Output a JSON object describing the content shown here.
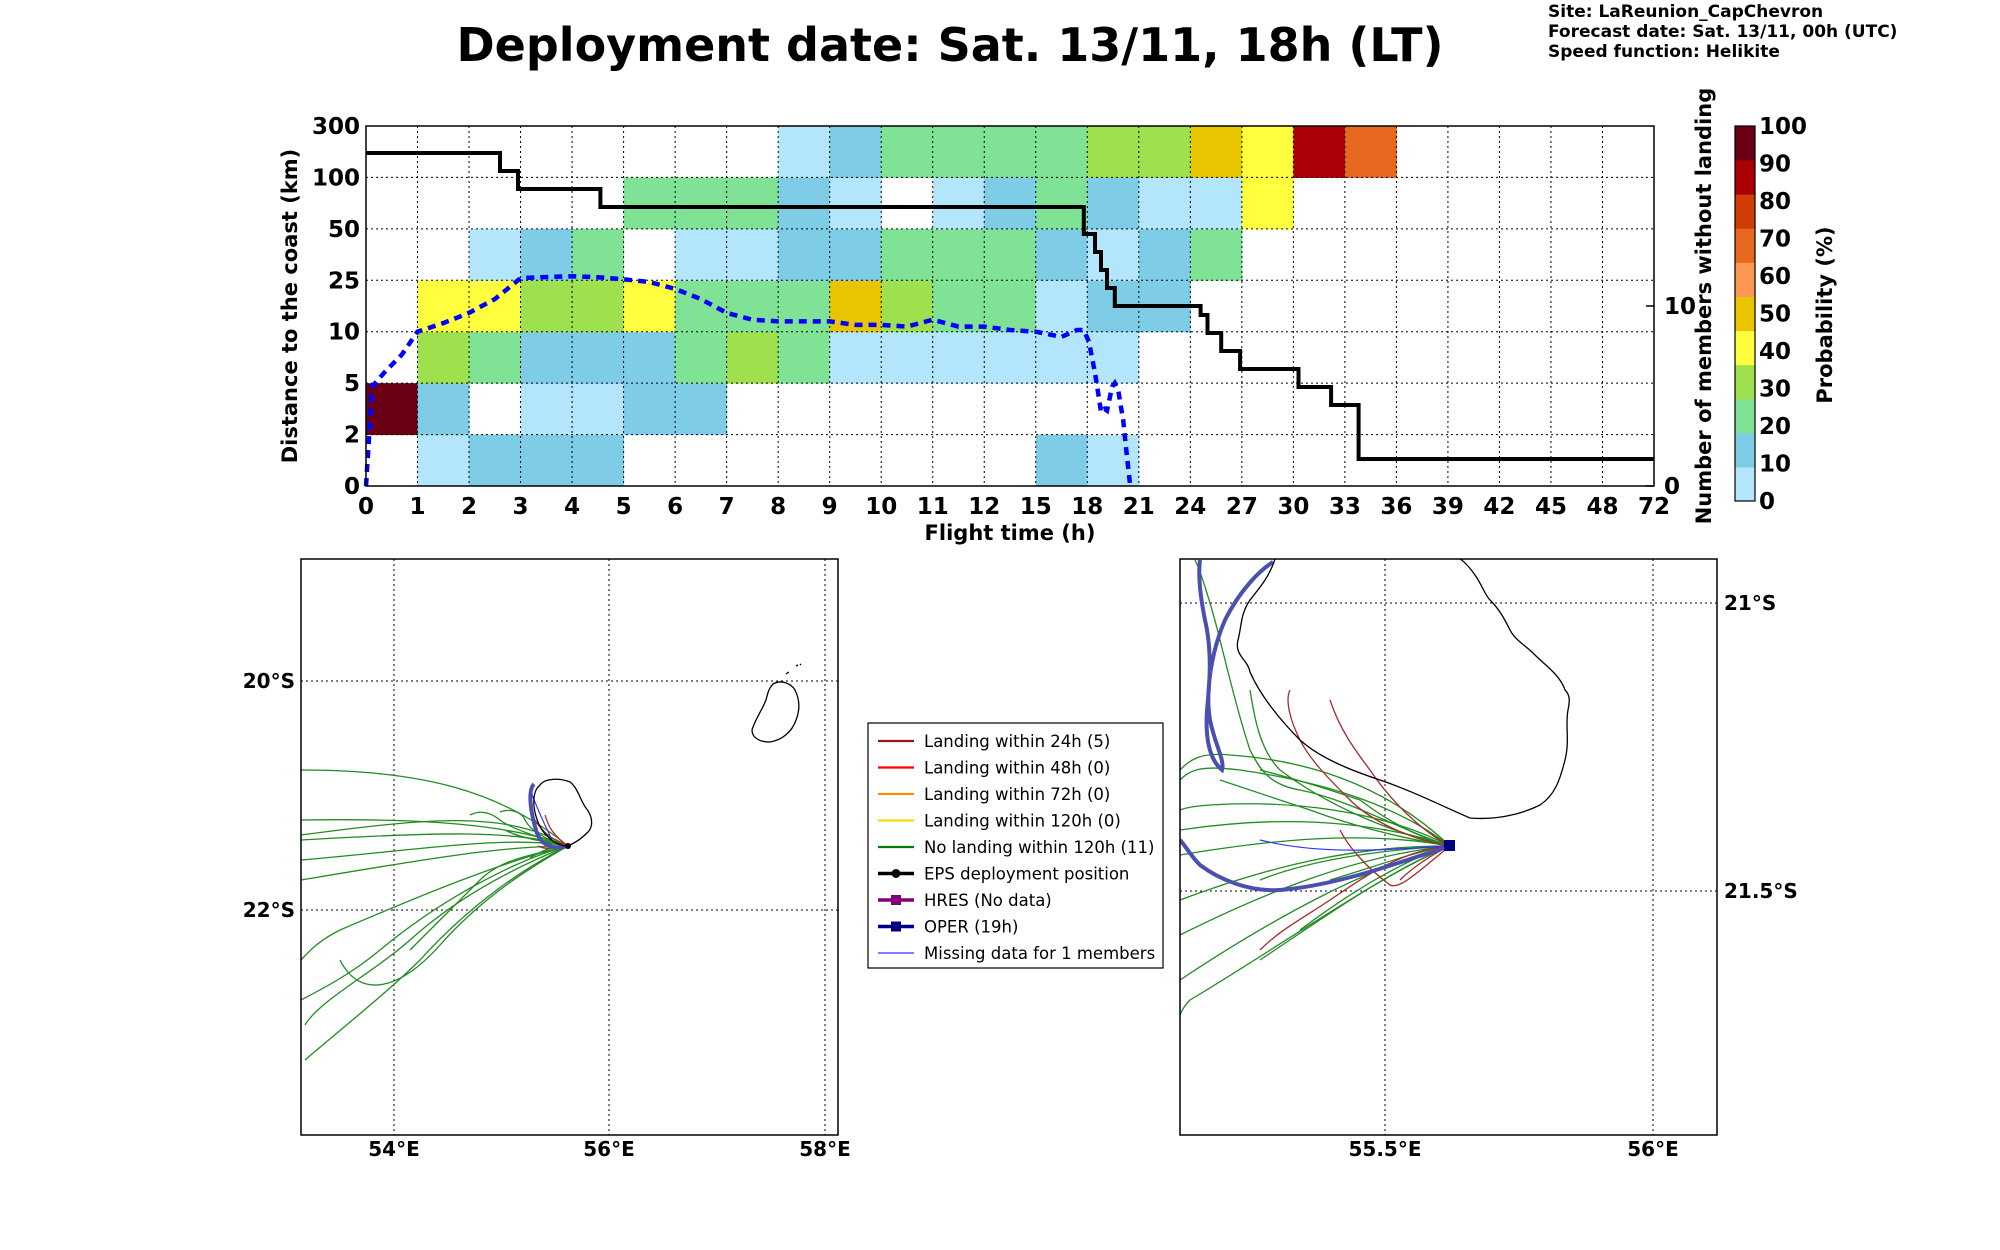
{
  "title": "Deployment date: Sat. 13/11, 18h (LT)",
  "info": {
    "site": "Site: LaReunion_CapChevron",
    "forecast": "Forecast date: Sat. 13/11, 00h (UTC)",
    "speed": "Speed function: Helikite"
  },
  "chart_data": [
    {
      "type": "heatmap",
      "xlabel": "Flight time (h)",
      "ylabel": "Distance to the coast (km)",
      "y2label": "Number of members without landing",
      "x_ticks": [
        "0",
        "1",
        "2",
        "3",
        "4",
        "5",
        "6",
        "7",
        "8",
        "9",
        "10",
        "11",
        "12",
        "15",
        "18",
        "21",
        "24",
        "27",
        "30",
        "33",
        "36",
        "39",
        "42",
        "45",
        "48",
        "72"
      ],
      "y_ticks": [
        "0",
        "2",
        "5",
        "10",
        "25",
        "50",
        "100",
        "300"
      ],
      "y2_ticks": [
        "0",
        "10"
      ],
      "y2lim": [
        0,
        20
      ],
      "grid": true,
      "colorbar": {
        "label": "Probability (%)",
        "ticks": [
          "0",
          "10",
          "20",
          "30",
          "40",
          "50",
          "60",
          "70",
          "80",
          "90",
          "100"
        ],
        "colors": [
          "#b3e5fb",
          "#7fcce7",
          "#80e294",
          "#9ee04d",
          "#ffff40",
          "#e8c500",
          "#ff9651",
          "#e86820",
          "#d03d06",
          "#ab0005",
          "#6b0015"
        ]
      },
      "cells": [
        {
          "x": 0,
          "y": 1,
          "c": 10
        },
        {
          "x": 1,
          "y": 0,
          "c": 0
        },
        {
          "x": 1,
          "y": 1,
          "c": 1
        },
        {
          "x": 1,
          "y": 2,
          "c": 3
        },
        {
          "x": 1,
          "y": 3,
          "c": 4
        },
        {
          "x": 2,
          "y": 0,
          "c": 1
        },
        {
          "x": 2,
          "y": 2,
          "c": 2
        },
        {
          "x": 2,
          "y": 3,
          "c": 4
        },
        {
          "x": 2,
          "y": 4,
          "c": 0
        },
        {
          "x": 3,
          "y": 0,
          "c": 1
        },
        {
          "x": 3,
          "y": 1,
          "c": 0
        },
        {
          "x": 3,
          "y": 2,
          "c": 1
        },
        {
          "x": 3,
          "y": 3,
          "c": 3
        },
        {
          "x": 3,
          "y": 4,
          "c": 1
        },
        {
          "x": 4,
          "y": 0,
          "c": 1
        },
        {
          "x": 4,
          "y": 1,
          "c": 0
        },
        {
          "x": 4,
          "y": 2,
          "c": 1
        },
        {
          "x": 4,
          "y": 3,
          "c": 3
        },
        {
          "x": 4,
          "y": 4,
          "c": 2
        },
        {
          "x": 5,
          "y": 1,
          "c": 1
        },
        {
          "x": 5,
          "y": 2,
          "c": 1
        },
        {
          "x": 5,
          "y": 3,
          "c": 4
        },
        {
          "x": 5,
          "y": 5,
          "c": 2
        },
        {
          "x": 6,
          "y": 1,
          "c": 1
        },
        {
          "x": 6,
          "y": 2,
          "c": 2
        },
        {
          "x": 6,
          "y": 3,
          "c": 2
        },
        {
          "x": 6,
          "y": 4,
          "c": 0
        },
        {
          "x": 6,
          "y": 5,
          "c": 2
        },
        {
          "x": 7,
          "y": 2,
          "c": 3
        },
        {
          "x": 7,
          "y": 3,
          "c": 2
        },
        {
          "x": 7,
          "y": 4,
          "c": 0
        },
        {
          "x": 7,
          "y": 5,
          "c": 2
        },
        {
          "x": 8,
          "y": 2,
          "c": 2
        },
        {
          "x": 8,
          "y": 3,
          "c": 2
        },
        {
          "x": 8,
          "y": 4,
          "c": 1
        },
        {
          "x": 8,
          "y": 5,
          "c": 1
        },
        {
          "x": 8,
          "y": 6,
          "c": 0
        },
        {
          "x": 9,
          "y": 2,
          "c": 0
        },
        {
          "x": 9,
          "y": 3,
          "c": 5
        },
        {
          "x": 9,
          "y": 4,
          "c": 1
        },
        {
          "x": 9,
          "y": 5,
          "c": 0
        },
        {
          "x": 9,
          "y": 6,
          "c": 1
        },
        {
          "x": 10,
          "y": 2,
          "c": 0
        },
        {
          "x": 10,
          "y": 3,
          "c": 3
        },
        {
          "x": 10,
          "y": 4,
          "c": 2
        },
        {
          "x": 10,
          "y": 6,
          "c": 2
        },
        {
          "x": 11,
          "y": 2,
          "c": 0
        },
        {
          "x": 11,
          "y": 3,
          "c": 2
        },
        {
          "x": 11,
          "y": 4,
          "c": 2
        },
        {
          "x": 11,
          "y": 5,
          "c": 0
        },
        {
          "x": 11,
          "y": 6,
          "c": 2
        },
        {
          "x": 12,
          "y": 2,
          "c": 0
        },
        {
          "x": 12,
          "y": 3,
          "c": 2
        },
        {
          "x": 12,
          "y": 4,
          "c": 2
        },
        {
          "x": 12,
          "y": 5,
          "c": 1
        },
        {
          "x": 12,
          "y": 6,
          "c": 2
        },
        {
          "x": 13,
          "y": 0,
          "c": 1
        },
        {
          "x": 13,
          "y": 2,
          "c": 0
        },
        {
          "x": 13,
          "y": 3,
          "c": 0
        },
        {
          "x": 13,
          "y": 4,
          "c": 1
        },
        {
          "x": 13,
          "y": 5,
          "c": 2
        },
        {
          "x": 13,
          "y": 6,
          "c": 2
        },
        {
          "x": 14,
          "y": 0,
          "c": 0
        },
        {
          "x": 14,
          "y": 2,
          "c": 0
        },
        {
          "x": 14,
          "y": 3,
          "c": 1
        },
        {
          "x": 14,
          "y": 4,
          "c": 0
        },
        {
          "x": 14,
          "y": 5,
          "c": 1
        },
        {
          "x": 14,
          "y": 6,
          "c": 3
        },
        {
          "x": 15,
          "y": 3,
          "c": 1
        },
        {
          "x": 15,
          "y": 4,
          "c": 1
        },
        {
          "x": 15,
          "y": 5,
          "c": 0
        },
        {
          "x": 15,
          "y": 6,
          "c": 3
        },
        {
          "x": 16,
          "y": 4,
          "c": 2
        },
        {
          "x": 16,
          "y": 5,
          "c": 0
        },
        {
          "x": 16,
          "y": 6,
          "c": 5
        },
        {
          "x": 17,
          "y": 5,
          "c": 4
        },
        {
          "x": 17,
          "y": 6,
          "c": 4
        },
        {
          "x": 18,
          "y": 6,
          "c": 9
        },
        {
          "x": 19,
          "y": 6,
          "c": 7
        }
      ],
      "series": [
        {
          "name": "members without landing",
          "style": "solid",
          "color": "#000000",
          "x": [
            0,
            2.6,
            2.6,
            2.95,
            2.95,
            4.55,
            4.55,
            17.8,
            17.8,
            18.45,
            18.45,
            18.8,
            18.8,
            19.15,
            19.15,
            19.6,
            19.6,
            24.6,
            24.6,
            25.0,
            25.0,
            25.8,
            25.8,
            26.9,
            26.9,
            30.3,
            30.3,
            32.2,
            32.2,
            33.8,
            33.8,
            72
          ],
          "y": [
            18.5,
            18.5,
            17.5,
            17.5,
            16.5,
            16.5,
            15.5,
            15.5,
            14.0,
            14.0,
            13.0,
            13.0,
            12.0,
            12.0,
            11.0,
            11.0,
            10.0,
            10.0,
            9.5,
            9.5,
            8.5,
            8.5,
            7.5,
            7.5,
            6.5,
            6.5,
            5.5,
            5.5,
            4.5,
            4.5,
            1.5,
            1.5
          ]
        },
        {
          "name": "median distance",
          "style": "dashed",
          "color": "#0000ff",
          "x": [
            0,
            0.12,
            0.35,
            0.7,
            1.0,
            1.5,
            2.0,
            2.5,
            3.0,
            3.4,
            4.0,
            4.5,
            5.0,
            5.5,
            6.0,
            6.5,
            7.0,
            7.5,
            8.0,
            9.0,
            9.5,
            10.0,
            10.5,
            11.0,
            11.5,
            12.0,
            13.5,
            15.0,
            16.5,
            17.4,
            17.8,
            18.1,
            18.45,
            18.7,
            18.8,
            19.0,
            19.15,
            19.45,
            19.6,
            19.8,
            20.1,
            20.3,
            20.45,
            20.5
          ],
          "y": [
            0,
            4.8,
            6.0,
            7.8,
            10.0,
            12.5,
            15.5,
            19.5,
            26.0,
            26.5,
            27.0,
            26.5,
            25.5,
            24.5,
            22.5,
            19.5,
            15.5,
            13.5,
            13.0,
            13.0,
            12.0,
            12.0,
            11.5,
            13.5,
            11.5,
            11.5,
            10.5,
            10.0,
            9.5,
            10.5,
            10.5,
            9.0,
            6.0,
            4.0,
            3.3,
            3.5,
            3.4,
            4.8,
            5.0,
            4.6,
            2.8,
            1.2,
            0.3,
            0
          ]
        }
      ]
    },
    {
      "type": "map",
      "x_ticks": [
        "54°E",
        "56°E",
        "58°E"
      ],
      "y_ticks": [
        "20°S",
        "22°S"
      ],
      "xlim": [
        53.15,
        58.15
      ],
      "ylim": [
        -24.0,
        -19.0
      ]
    },
    {
      "type": "map",
      "x_ticks": [
        "55.5°E",
        "56°E"
      ],
      "y_ticks": [
        "21°S",
        "21.5°S"
      ],
      "xlim": [
        55.1,
        56.1
      ],
      "ylim": [
        -22.0,
        -21.0
      ]
    }
  ],
  "legend": {
    "items": [
      {
        "label": "Landing within 24h (5)",
        "color": "#8b1a1a",
        "kind": "line"
      },
      {
        "label": "Landing within 48h (0)",
        "color": "#ff0000",
        "kind": "line"
      },
      {
        "label": "Landing within 72h (0)",
        "color": "#ff8c00",
        "kind": "line"
      },
      {
        "label": "Landing within 120h (0)",
        "color": "#ffd700",
        "kind": "line"
      },
      {
        "label": "No landing within 120h (11)",
        "color": "#008000",
        "kind": "line"
      },
      {
        "label": "EPS deployment position",
        "color": "#000000",
        "kind": "circle"
      },
      {
        "label": "HRES (No data)",
        "color": "#800080",
        "kind": "square"
      },
      {
        "label": "OPER (19h)",
        "color": "#000080",
        "kind": "square"
      },
      {
        "label": "Missing data for 1 members",
        "color": "#3333ff",
        "kind": "thin"
      }
    ]
  }
}
